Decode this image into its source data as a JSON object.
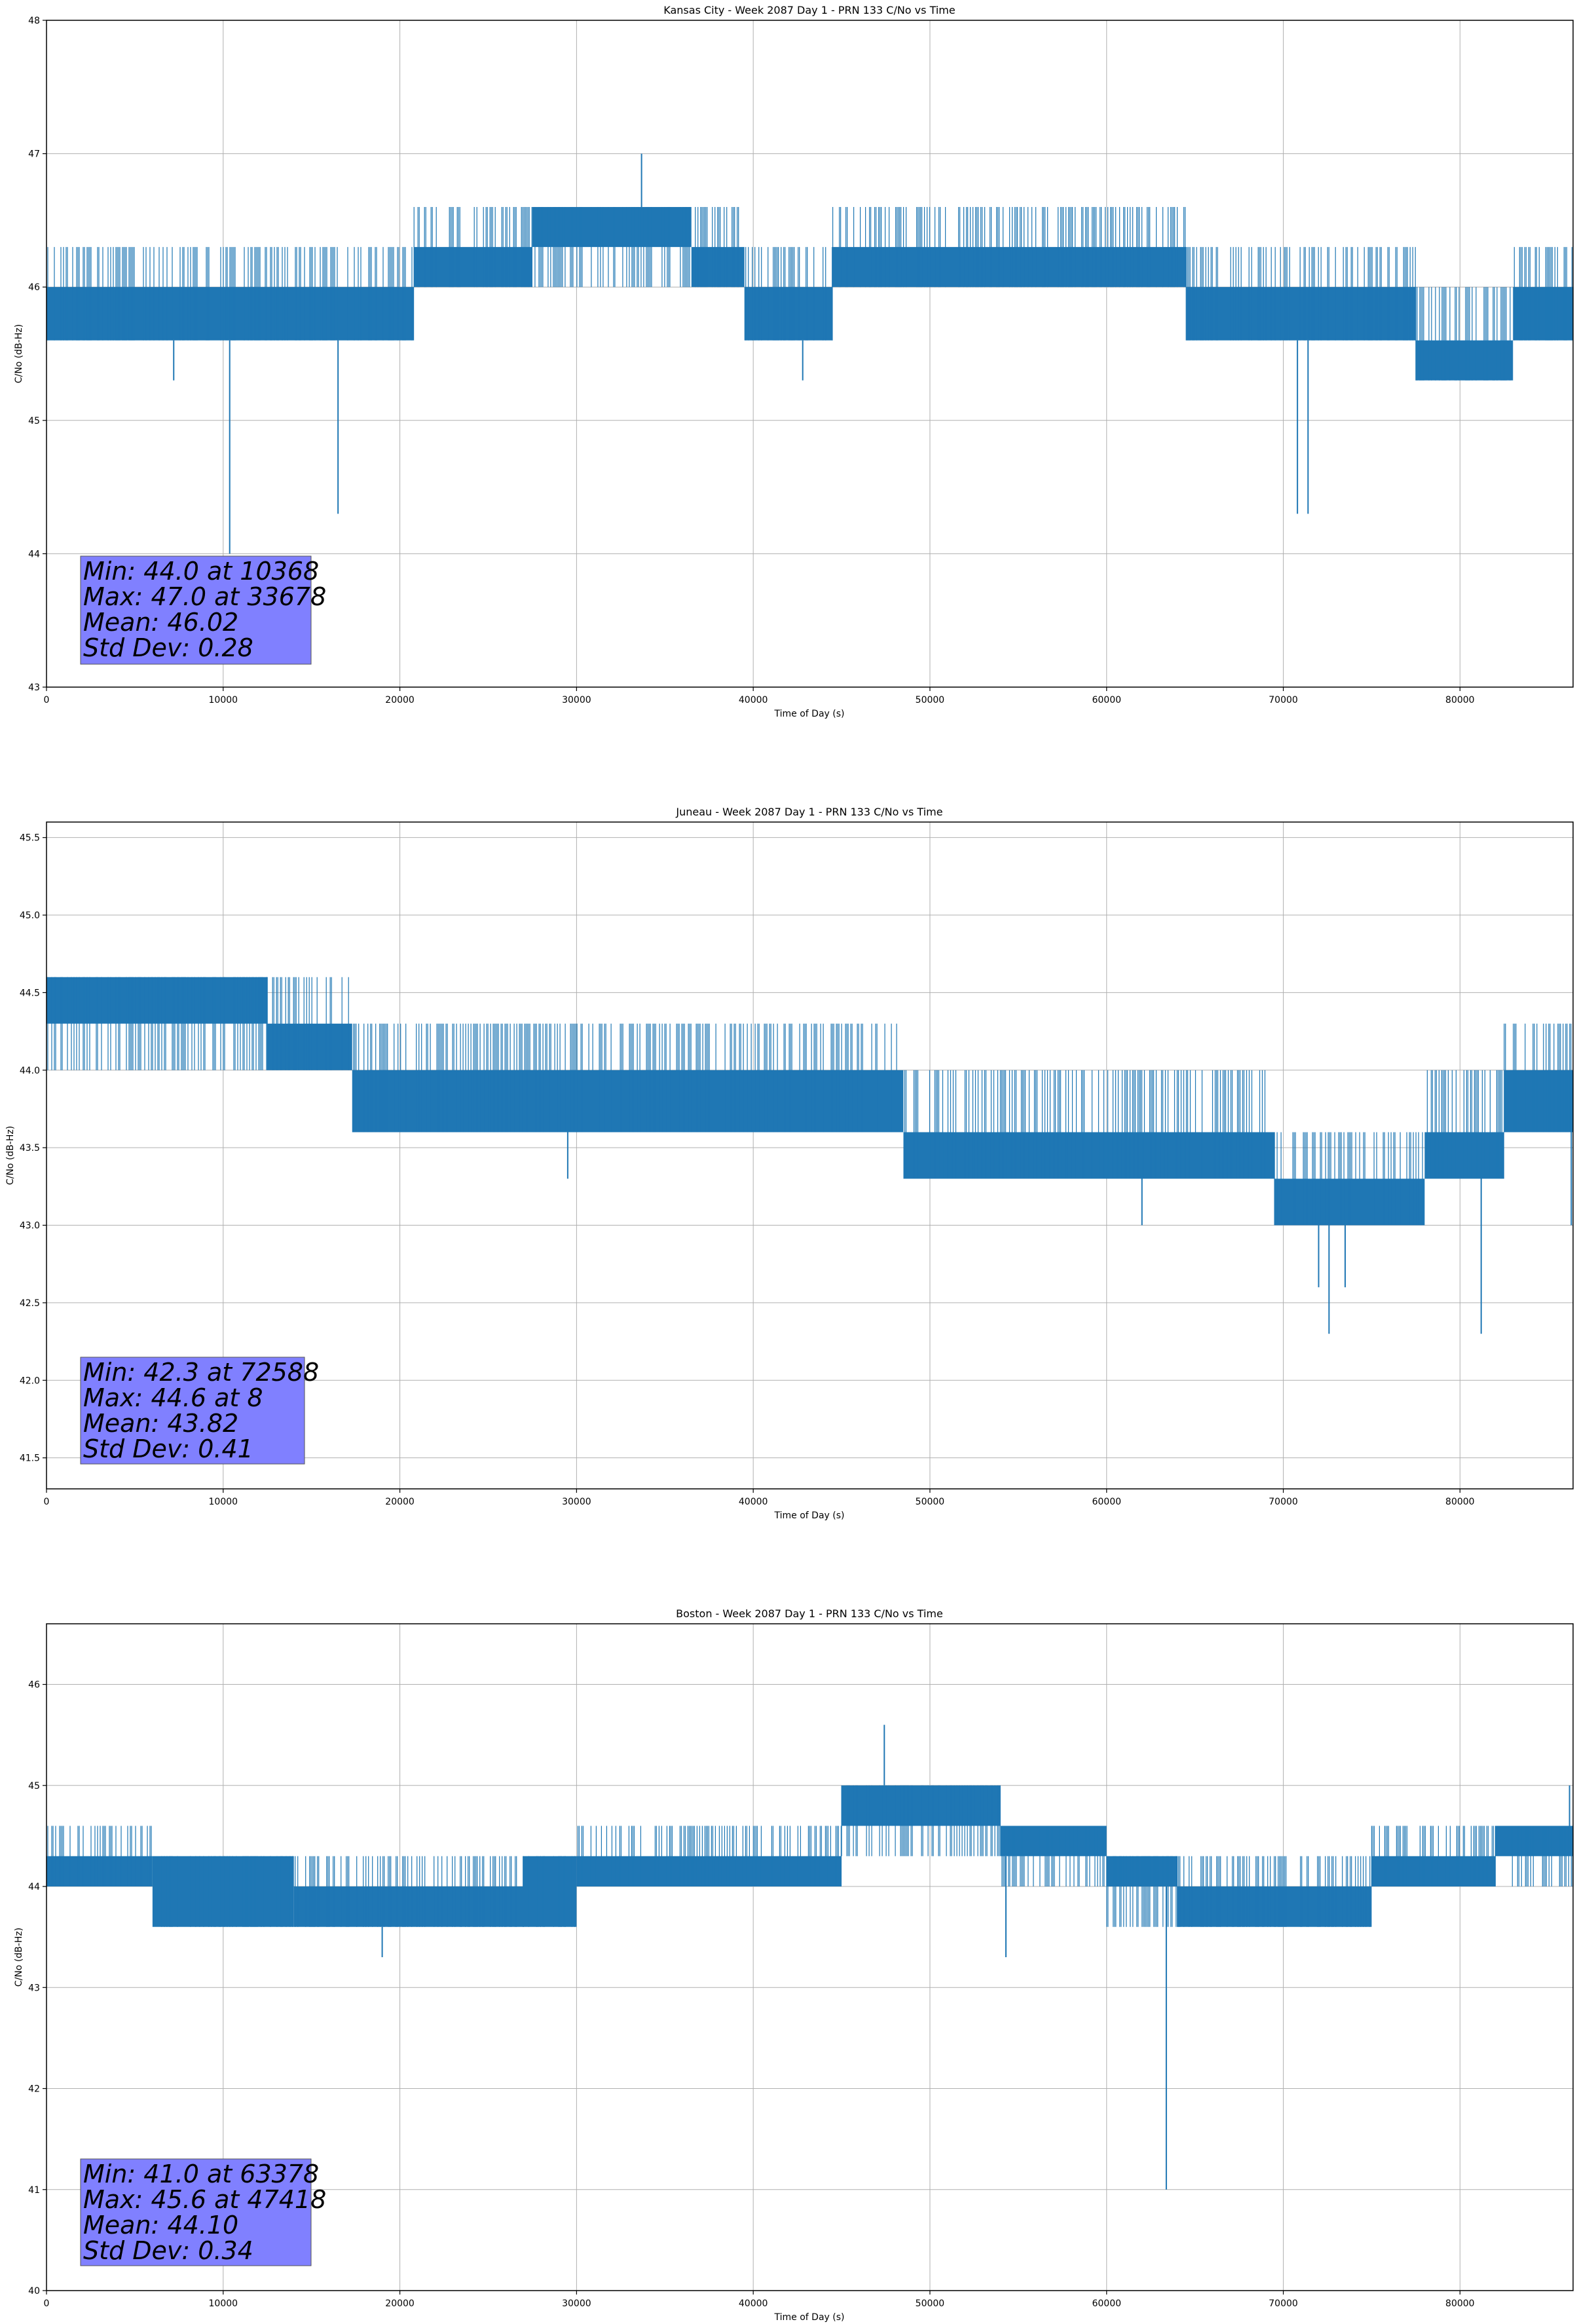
{
  "colors": {
    "line": "#1f77b4",
    "grid": "#b0b0b0",
    "stats_box": "#8080ff",
    "axes": "#000000"
  },
  "chart_data": [
    {
      "type": "line",
      "title": "Kansas City - Week 2087 Day 1 - PRN 133 C/No vs Time",
      "xlabel": "Time of Day (s)",
      "ylabel": "C/No (dB-Hz)",
      "xlim": [
        0,
        86400
      ],
      "ylim": [
        43,
        48
      ],
      "xticks": [
        0,
        10000,
        20000,
        30000,
        40000,
        50000,
        60000,
        70000,
        80000
      ],
      "yticks": [
        43,
        44,
        45,
        46,
        47,
        48
      ],
      "ytick_labels": [
        "43",
        "44",
        "45",
        "46",
        "47",
        "48"
      ],
      "grid": true,
      "series": [
        {
          "segments": [
            {
              "x": [
                0,
                20800
              ],
              "low": 45.6,
              "high": 46.0,
              "alt": 46.3
            },
            {
              "x": [
                20800,
                27500
              ],
              "low": 46.0,
              "high": 46.3,
              "alt": 46.6
            },
            {
              "x": [
                27500,
                36500
              ],
              "low": 46.3,
              "high": 46.6,
              "alt": 46.0
            },
            {
              "x": [
                36500,
                39500
              ],
              "low": 46.0,
              "high": 46.3,
              "alt": 46.6
            },
            {
              "x": [
                39500,
                44500
              ],
              "low": 45.6,
              "high": 46.0,
              "alt": 46.3
            },
            {
              "x": [
                44500,
                64500
              ],
              "low": 46.0,
              "high": 46.3,
              "alt": 46.6
            },
            {
              "x": [
                64500,
                77500
              ],
              "low": 45.6,
              "high": 46.0,
              "alt": 46.3
            },
            {
              "x": [
                77500,
                83000
              ],
              "low": 45.3,
              "high": 45.6,
              "alt": 46.0
            },
            {
              "x": [
                83000,
                86400
              ],
              "low": 45.6,
              "high": 46.0,
              "alt": 46.3
            }
          ],
          "spikes": [
            {
              "x": 10368,
              "y": 44.0
            },
            {
              "x": 16500,
              "y": 44.3
            },
            {
              "x": 70800,
              "y": 44.3
            },
            {
              "x": 71400,
              "y": 44.3
            },
            {
              "x": 7200,
              "y": 45.3
            },
            {
              "x": 42800,
              "y": 45.3
            },
            {
              "x": 33678,
              "y": 47.0
            }
          ]
        }
      ],
      "stats": [
        "Min: 44.0 at 10368",
        "Max: 47.0 at 33678",
        "Mean: 46.02",
        "Std Dev: 0.28"
      ]
    },
    {
      "type": "line",
      "title": "Juneau - Week 2087 Day 1 - PRN 133 C/No vs Time",
      "xlabel": "Time of Day (s)",
      "ylabel": "C/No (dB-Hz)",
      "xlim": [
        0,
        86400
      ],
      "ylim": [
        41.3,
        45.6
      ],
      "xticks": [
        0,
        10000,
        20000,
        30000,
        40000,
        50000,
        60000,
        70000,
        80000
      ],
      "yticks": [
        41.5,
        42.0,
        42.5,
        43.0,
        43.5,
        44.0,
        44.5,
        45.0,
        45.5
      ],
      "ytick_labels": [
        "41.5",
        "42.0",
        "42.5",
        "43.0",
        "43.5",
        "44.0",
        "44.5",
        "45.0",
        "45.5"
      ],
      "grid": true,
      "series": [
        {
          "segments": [
            {
              "x": [
                0,
                12500
              ],
              "low": 44.3,
              "high": 44.6,
              "alt": 44.0
            },
            {
              "x": [
                12500,
                17300
              ],
              "low": 44.0,
              "high": 44.3,
              "alt": 44.6
            },
            {
              "x": [
                17300,
                21500
              ],
              "low": 43.6,
              "high": 44.0,
              "alt": 44.3
            },
            {
              "x": [
                21500,
                48500
              ],
              "low": 43.6,
              "high": 44.0,
              "alt": 44.3
            },
            {
              "x": [
                48500,
                69500
              ],
              "low": 43.3,
              "high": 43.6,
              "alt": 44.0
            },
            {
              "x": [
                69500,
                78000
              ],
              "low": 43.0,
              "high": 43.3,
              "alt": 43.6
            },
            {
              "x": [
                78000,
                82500
              ],
              "low": 43.3,
              "high": 43.6,
              "alt": 44.0
            },
            {
              "x": [
                82500,
                86400
              ],
              "low": 43.6,
              "high": 44.0,
              "alt": 44.3
            }
          ],
          "spikes": [
            {
              "x": 72588,
              "y": 42.3
            },
            {
              "x": 81200,
              "y": 42.3
            },
            {
              "x": 72000,
              "y": 42.6
            },
            {
              "x": 73500,
              "y": 42.6
            },
            {
              "x": 29500,
              "y": 43.3
            },
            {
              "x": 62000,
              "y": 43.0
            },
            {
              "x": 86300,
              "y": 43.0
            },
            {
              "x": 8,
              "y": 44.6
            }
          ]
        }
      ],
      "stats": [
        "Min: 42.3 at 72588",
        "Max: 44.6 at 8",
        "Mean: 43.82",
        "Std Dev: 0.41"
      ]
    },
    {
      "type": "line",
      "title": "Boston - Week 2087 Day 1 - PRN 133 C/No vs Time",
      "xlabel": "Time of Day (s)",
      "ylabel": "C/No (dB-Hz)",
      "xlim": [
        0,
        86400
      ],
      "ylim": [
        40,
        46.6
      ],
      "xticks": [
        0,
        10000,
        20000,
        30000,
        40000,
        50000,
        60000,
        70000,
        80000
      ],
      "yticks": [
        40,
        41,
        42,
        43,
        44,
        45,
        46
      ],
      "ytick_labels": [
        "40",
        "41",
        "42",
        "43",
        "44",
        "45",
        "46"
      ],
      "grid": true,
      "series": [
        {
          "segments": [
            {
              "x": [
                0,
                6000
              ],
              "low": 44.0,
              "high": 44.3,
              "alt": 44.6
            },
            {
              "x": [
                6000,
                14000
              ],
              "low": 43.6,
              "high": 44.3,
              "alt": 44.0
            },
            {
              "x": [
                14000,
                27000
              ],
              "low": 43.6,
              "high": 44.0,
              "alt": 44.3
            },
            {
              "x": [
                27000,
                30000
              ],
              "low": 43.6,
              "high": 44.3,
              "alt": 44.0
            },
            {
              "x": [
                30000,
                45000
              ],
              "low": 44.0,
              "high": 44.3,
              "alt": 44.6
            },
            {
              "x": [
                45000,
                54000
              ],
              "low": 44.6,
              "high": 45.0,
              "alt": 44.3
            },
            {
              "x": [
                54000,
                60000
              ],
              "low": 44.3,
              "high": 44.6,
              "alt": 44.0
            },
            {
              "x": [
                60000,
                64000
              ],
              "low": 44.0,
              "high": 44.3,
              "alt": 43.6
            },
            {
              "x": [
                64000,
                75000
              ],
              "low": 43.6,
              "high": 44.0,
              "alt": 44.3
            },
            {
              "x": [
                75000,
                82000
              ],
              "low": 44.0,
              "high": 44.3,
              "alt": 44.6
            },
            {
              "x": [
                82000,
                86400
              ],
              "low": 44.3,
              "high": 44.6,
              "alt": 44.0
            }
          ],
          "spikes": [
            {
              "x": 63378,
              "y": 41.0
            },
            {
              "x": 54300,
              "y": 43.3
            },
            {
              "x": 19000,
              "y": 43.3
            },
            {
              "x": 47418,
              "y": 45.6
            },
            {
              "x": 86200,
              "y": 45.0
            }
          ]
        }
      ],
      "stats": [
        "Min: 41.0 at 63378",
        "Max: 45.6 at 47418",
        "Mean: 44.10",
        "Std Dev: 0.34"
      ]
    }
  ]
}
